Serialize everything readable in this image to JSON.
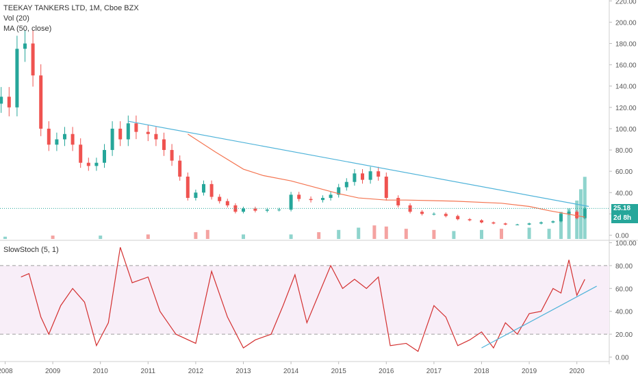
{
  "legend": {
    "title": "TEEKAY TANKERS LTD, 1M, Cboe BZX",
    "vol": "Vol (20)",
    "ma": "MA (50, close)",
    "stoch": "SlowStoch (5, 1)"
  },
  "price_tag": {
    "price": "25.18",
    "countdown": "2d 8h",
    "color": "#26a69a",
    "countdown_color": "#26a69a"
  },
  "colors": {
    "up": "#26a69a",
    "down": "#ef5350",
    "vol_up": "#8fd4cd",
    "vol_down": "#f4a3a1",
    "ma": "#f47450",
    "trendline": "#4fb3d9",
    "stoch": "#d32f2f",
    "stoch_band": "#f8eef8",
    "axis_text": "#555555",
    "grid": "#eeeeee"
  },
  "chart_data": [
    {
      "type": "candlestick",
      "title": "TEEKAY TANKERS LTD, 1M, Cboe BZX",
      "x_tick_labels": [
        "2008",
        "2009",
        "2010",
        "2011",
        "2012",
        "2013",
        "2014",
        "2015",
        "2016",
        "2017",
        "2018",
        "2019",
        "2020"
      ],
      "y_tick_labels": [
        "0.00",
        "20.00",
        "40.00",
        "60.00",
        "80.00",
        "100.00",
        "120.00",
        "140.00",
        "160.00",
        "180.00",
        "200.00",
        "220.00"
      ],
      "ylim": [
        0,
        220
      ],
      "last_price": 25.18,
      "close_series": [
        {
          "date": "2007-12",
          "close": 130
        },
        {
          "date": "2008-02",
          "close": 120
        },
        {
          "date": "2008-04",
          "close": 175
        },
        {
          "date": "2008-06",
          "close": 180
        },
        {
          "date": "2008-08",
          "close": 150
        },
        {
          "date": "2008-10",
          "close": 100
        },
        {
          "date": "2008-12",
          "close": 85
        },
        {
          "date": "2009-02",
          "close": 90
        },
        {
          "date": "2009-04",
          "close": 95
        },
        {
          "date": "2009-06",
          "close": 85
        },
        {
          "date": "2009-08",
          "close": 68
        },
        {
          "date": "2009-10",
          "close": 65
        },
        {
          "date": "2009-12",
          "close": 68
        },
        {
          "date": "2010-02",
          "close": 80
        },
        {
          "date": "2010-04",
          "close": 100
        },
        {
          "date": "2010-06",
          "close": 90
        },
        {
          "date": "2010-08",
          "close": 105
        },
        {
          "date": "2010-10",
          "close": 97
        },
        {
          "date": "2011-01",
          "close": 95
        },
        {
          "date": "2011-03",
          "close": 90
        },
        {
          "date": "2011-05",
          "close": 80
        },
        {
          "date": "2011-07",
          "close": 70
        },
        {
          "date": "2011-09",
          "close": 55
        },
        {
          "date": "2011-11",
          "close": 35
        },
        {
          "date": "2012-01",
          "close": 40
        },
        {
          "date": "2012-03",
          "close": 48
        },
        {
          "date": "2012-05",
          "close": 36
        },
        {
          "date": "2012-07",
          "close": 32
        },
        {
          "date": "2012-09",
          "close": 28
        },
        {
          "date": "2012-11",
          "close": 22
        },
        {
          "date": "2013-01",
          "close": 25
        },
        {
          "date": "2013-04",
          "close": 23
        },
        {
          "date": "2013-07",
          "close": 24
        },
        {
          "date": "2013-10",
          "close": 24
        },
        {
          "date": "2014-01",
          "close": 38
        },
        {
          "date": "2014-03",
          "close": 34
        },
        {
          "date": "2014-06",
          "close": 33
        },
        {
          "date": "2014-09",
          "close": 35
        },
        {
          "date": "2014-11",
          "close": 38
        },
        {
          "date": "2015-01",
          "close": 45
        },
        {
          "date": "2015-03",
          "close": 50
        },
        {
          "date": "2015-05",
          "close": 58
        },
        {
          "date": "2015-07",
          "close": 52
        },
        {
          "date": "2015-09",
          "close": 60
        },
        {
          "date": "2015-11",
          "close": 55
        },
        {
          "date": "2016-01",
          "close": 35
        },
        {
          "date": "2016-04",
          "close": 28
        },
        {
          "date": "2016-07",
          "close": 22
        },
        {
          "date": "2016-10",
          "close": 20
        },
        {
          "date": "2017-01",
          "close": 20
        },
        {
          "date": "2017-04",
          "close": 18
        },
        {
          "date": "2017-07",
          "close": 15
        },
        {
          "date": "2017-10",
          "close": 14
        },
        {
          "date": "2018-01",
          "close": 12
        },
        {
          "date": "2018-04",
          "close": 11
        },
        {
          "date": "2018-07",
          "close": 10
        },
        {
          "date": "2018-10",
          "close": 10
        },
        {
          "date": "2019-01",
          "close": 11
        },
        {
          "date": "2019-04",
          "close": 12
        },
        {
          "date": "2019-07",
          "close": 13
        },
        {
          "date": "2019-09",
          "close": 20
        },
        {
          "date": "2019-11",
          "close": 22
        },
        {
          "date": "2020-01",
          "close": 16
        },
        {
          "date": "2020-03",
          "close": 25
        }
      ],
      "ma_50": [
        {
          "date": "2011-11",
          "value": 95
        },
        {
          "date": "2012-06",
          "value": 78
        },
        {
          "date": "2013-01",
          "value": 62
        },
        {
          "date": "2013-06",
          "value": 56
        },
        {
          "date": "2014-01",
          "value": 51
        },
        {
          "date": "2014-06",
          "value": 46
        },
        {
          "date": "2015-01",
          "value": 39
        },
        {
          "date": "2015-06",
          "value": 35
        },
        {
          "date": "2016-01",
          "value": 33
        },
        {
          "date": "2016-06",
          "value": 33
        },
        {
          "date": "2017-06",
          "value": 32
        },
        {
          "date": "2018-06",
          "value": 30
        },
        {
          "date": "2019-01",
          "value": 27
        },
        {
          "date": "2019-06",
          "value": 23
        },
        {
          "date": "2019-12",
          "value": 19
        },
        {
          "date": "2020-03",
          "value": 17
        }
      ],
      "trendline": [
        {
          "date": "2010-08",
          "value": 107
        },
        {
          "date": "2020-04",
          "value": 27
        }
      ],
      "volume_ylim": [
        0,
        75
      ],
      "volume": [
        {
          "date": "2008-01",
          "value": 2,
          "up": true
        },
        {
          "date": "2009-01",
          "value": 3,
          "up": false
        },
        {
          "date": "2010-01",
          "value": 3,
          "up": true
        },
        {
          "date": "2011-01",
          "value": 4,
          "up": false
        },
        {
          "date": "2012-01",
          "value": 6,
          "up": false
        },
        {
          "date": "2012-04",
          "value": 8,
          "up": false
        },
        {
          "date": "2013-01",
          "value": 4,
          "up": true
        },
        {
          "date": "2014-01",
          "value": 4,
          "up": true
        },
        {
          "date": "2014-08",
          "value": 6,
          "up": false
        },
        {
          "date": "2015-01",
          "value": 8,
          "up": true
        },
        {
          "date": "2015-06",
          "value": 10,
          "up": true
        },
        {
          "date": "2015-10",
          "value": 12,
          "up": false
        },
        {
          "date": "2016-01",
          "value": 11,
          "up": false
        },
        {
          "date": "2016-06",
          "value": 9,
          "up": false
        },
        {
          "date": "2017-01",
          "value": 8,
          "up": false
        },
        {
          "date": "2017-06",
          "value": 7,
          "up": true
        },
        {
          "date": "2018-01",
          "value": 8,
          "up": true
        },
        {
          "date": "2018-06",
          "value": 9,
          "up": false
        },
        {
          "date": "2019-01",
          "value": 10,
          "up": true
        },
        {
          "date": "2019-06",
          "value": 9,
          "up": true
        },
        {
          "date": "2019-09",
          "value": 24,
          "up": true
        },
        {
          "date": "2019-11",
          "value": 27,
          "up": true
        },
        {
          "date": "2020-01",
          "value": 34,
          "up": true
        },
        {
          "date": "2020-02",
          "value": 44,
          "up": true
        },
        {
          "date": "2020-03",
          "value": 55,
          "up": true
        }
      ]
    },
    {
      "type": "line",
      "title": "SlowStoch (5, 1)",
      "y_tick_labels": [
        "0.00",
        "20.00",
        "40.00",
        "60.00",
        "80.00",
        "100.00"
      ],
      "ylim": [
        0,
        100
      ],
      "band": [
        20,
        80
      ],
      "series": [
        {
          "date": "2008-05",
          "value": 70
        },
        {
          "date": "2008-07",
          "value": 73
        },
        {
          "date": "2008-10",
          "value": 35
        },
        {
          "date": "2008-12",
          "value": 20
        },
        {
          "date": "2009-03",
          "value": 45
        },
        {
          "date": "2009-06",
          "value": 60
        },
        {
          "date": "2009-09",
          "value": 48
        },
        {
          "date": "2009-12",
          "value": 10
        },
        {
          "date": "2010-03",
          "value": 30
        },
        {
          "date": "2010-06",
          "value": 96
        },
        {
          "date": "2010-09",
          "value": 65
        },
        {
          "date": "2011-01",
          "value": 70
        },
        {
          "date": "2011-04",
          "value": 40
        },
        {
          "date": "2011-08",
          "value": 20
        },
        {
          "date": "2012-01",
          "value": 12
        },
        {
          "date": "2012-05",
          "value": 75
        },
        {
          "date": "2012-09",
          "value": 35
        },
        {
          "date": "2013-01",
          "value": 8
        },
        {
          "date": "2013-04",
          "value": 15
        },
        {
          "date": "2013-08",
          "value": 20
        },
        {
          "date": "2013-11",
          "value": 45
        },
        {
          "date": "2014-02",
          "value": 72
        },
        {
          "date": "2014-05",
          "value": 30
        },
        {
          "date": "2014-08",
          "value": 55
        },
        {
          "date": "2014-11",
          "value": 80
        },
        {
          "date": "2015-02",
          "value": 60
        },
        {
          "date": "2015-05",
          "value": 68
        },
        {
          "date": "2015-08",
          "value": 60
        },
        {
          "date": "2015-11",
          "value": 70
        },
        {
          "date": "2016-02",
          "value": 10
        },
        {
          "date": "2016-06",
          "value": 12
        },
        {
          "date": "2016-09",
          "value": 5
        },
        {
          "date": "2017-01",
          "value": 45
        },
        {
          "date": "2017-04",
          "value": 35
        },
        {
          "date": "2017-07",
          "value": 10
        },
        {
          "date": "2017-10",
          "value": 15
        },
        {
          "date": "2018-01",
          "value": 22
        },
        {
          "date": "2018-04",
          "value": 8
        },
        {
          "date": "2018-07",
          "value": 30
        },
        {
          "date": "2018-10",
          "value": 20
        },
        {
          "date": "2019-01",
          "value": 38
        },
        {
          "date": "2019-04",
          "value": 40
        },
        {
          "date": "2019-07",
          "value": 60
        },
        {
          "date": "2019-09",
          "value": 56
        },
        {
          "date": "2019-11",
          "value": 85
        },
        {
          "date": "2020-01",
          "value": 54
        },
        {
          "date": "2020-03",
          "value": 68
        }
      ],
      "trendline": [
        {
          "date": "2018-01",
          "value": 8
        },
        {
          "date": "2020-06",
          "value": 62
        }
      ]
    }
  ]
}
